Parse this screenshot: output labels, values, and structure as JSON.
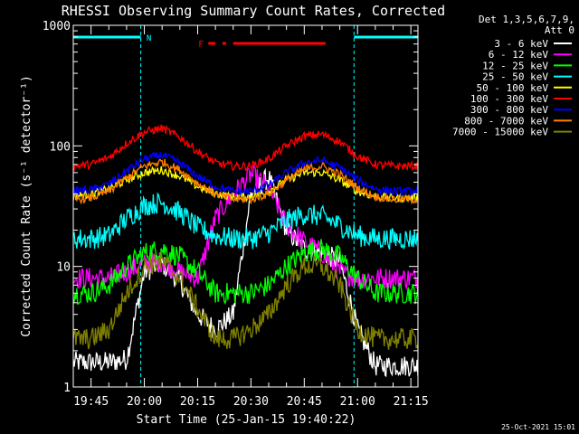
{
  "chart_data": {
    "type": "line",
    "title": "RHESSI Observing Summary Count Rates, Corrected",
    "xlabel": "Start Time (25-Jan-15 19:40:22)",
    "ylabel": "Corrected Count Rate (s⁻¹ detector⁻¹)",
    "y_scale": "log",
    "ylim": [
      1,
      1000
    ],
    "xlim": [
      "19:40",
      "21:17"
    ],
    "yticks": [
      {
        "value": 1,
        "label": "1"
      },
      {
        "value": 10,
        "label": "10"
      },
      {
        "value": 100,
        "label": "100"
      },
      {
        "value": 1000,
        "label": "1000"
      }
    ],
    "xticks": [
      {
        "value": "19:45",
        "label": "19:45"
      },
      {
        "value": "20:00",
        "label": "20:00"
      },
      {
        "value": "20:15",
        "label": "20:15"
      },
      {
        "value": "20:30",
        "label": "20:30"
      },
      {
        "value": "20:45",
        "label": "20:45"
      },
      {
        "value": "21:00",
        "label": "21:00"
      },
      {
        "value": "21:15",
        "label": "21:15"
      }
    ],
    "legend_header": [
      "Det 1,3,5,6,7,9,",
      "Att 0"
    ],
    "legend_position": "right",
    "timestamp": "25-Oct-2021 15:01",
    "flags": {
      "night": {
        "label": "N",
        "color": "#00ffff",
        "segments": [
          [
            "19:40",
            "19:59"
          ],
          [
            "20:59",
            "21:17"
          ]
        ]
      },
      "flare": {
        "label": "F",
        "color": "#ff0000",
        "segments": [
          [
            "20:18",
            "20:20"
          ],
          [
            "20:22",
            "20:23"
          ],
          [
            "20:25",
            "20:51"
          ]
        ]
      },
      "dashed_lines": [
        "19:59",
        "20:59",
        "21:17"
      ]
    },
    "x": [
      "19:40",
      "19:45",
      "19:50",
      "19:55",
      "20:00",
      "20:05",
      "20:10",
      "20:15",
      "20:20",
      "20:25",
      "20:30",
      "20:35",
      "20:40",
      "20:45",
      "20:50",
      "20:55",
      "21:00",
      "21:05",
      "21:10",
      "21:15"
    ],
    "series": [
      {
        "name": "3 - 6 keV",
        "color": "#ffffff",
        "values": [
          1.6,
          1.6,
          1.6,
          1.7,
          9,
          10.5,
          7.5,
          4,
          3,
          4,
          40,
          55,
          20,
          14,
          13,
          11,
          3,
          1.5,
          1.5,
          1.5
        ]
      },
      {
        "name": "6 - 12 keV",
        "color": "#ff00ff",
        "values": [
          8,
          8,
          8,
          9,
          10.5,
          11,
          9,
          8,
          25,
          40,
          58,
          45,
          22,
          16,
          13,
          9,
          8,
          8,
          8,
          8
        ]
      },
      {
        "name": "12 - 25 keV",
        "color": "#00ff00",
        "values": [
          6,
          6,
          7,
          10,
          13,
          14,
          12,
          9,
          6,
          6,
          6,
          7,
          10,
          13,
          14,
          12,
          8,
          6,
          6,
          6
        ]
      },
      {
        "name": "25 - 50 keV",
        "color": "#00ffff",
        "values": [
          17,
          17,
          18,
          25,
          32,
          34,
          28,
          21,
          18,
          17,
          17,
          19,
          24,
          27,
          26,
          22,
          18,
          17,
          17,
          17
        ]
      },
      {
        "name": "50 - 100 keV",
        "color": "#ffff00",
        "values": [
          38,
          40,
          44,
          52,
          60,
          63,
          56,
          46,
          40,
          38,
          38,
          42,
          52,
          60,
          60,
          52,
          42,
          38,
          37,
          37
        ]
      },
      {
        "name": "100 - 300 keV",
        "color": "#ff0000",
        "values": [
          68,
          70,
          80,
          105,
          130,
          140,
          118,
          90,
          72,
          68,
          68,
          78,
          100,
          120,
          125,
          108,
          82,
          70,
          68,
          68
        ]
      },
      {
        "name": "300 - 800 keV",
        "color": "#0000ff",
        "values": [
          42,
          43,
          48,
          62,
          78,
          84,
          72,
          56,
          46,
          42,
          42,
          47,
          60,
          72,
          76,
          66,
          52,
          44,
          42,
          42
        ]
      },
      {
        "name": "800 - 7000 keV",
        "color": "#ff8000",
        "values": [
          36,
          37,
          42,
          54,
          68,
          74,
          63,
          49,
          40,
          36,
          36,
          40,
          52,
          64,
          68,
          58,
          45,
          38,
          36,
          36
        ]
      },
      {
        "name": "7000 - 15000 keV",
        "color": "#808000",
        "values": [
          2.5,
          2.5,
          3,
          6,
          10,
          11,
          8,
          4.5,
          2.5,
          2.5,
          3,
          4,
          7,
          10,
          10,
          7,
          3,
          2.5,
          2.5,
          2.5
        ]
      }
    ]
  }
}
